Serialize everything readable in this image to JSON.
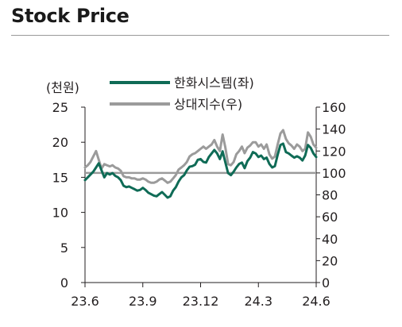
{
  "title": "Stock Price",
  "chart_data": {
    "type": "line",
    "y_left_label": "(천원)",
    "y_left_ticks": [
      "25",
      "20",
      "15",
      "10",
      "5",
      "0"
    ],
    "y_left_lim": [
      0,
      25
    ],
    "y_right_ticks": [
      "160",
      "140",
      "120",
      "100",
      "80",
      "60",
      "40",
      "20",
      "0"
    ],
    "y_right_lim": [
      0,
      160
    ],
    "x_ticks": [
      "23.6",
      "23.9",
      "23.12",
      "24.3",
      "24.6"
    ],
    "x_range": [
      "2023-06",
      "2024-06"
    ],
    "reference_line": {
      "axis": "right",
      "value": 100
    },
    "series": [
      {
        "name": "한화시스템(좌)",
        "axis": "left",
        "color": "#0f6b56",
        "values": [
          14.6,
          15.0,
          15.4,
          15.8,
          16.4,
          17.0,
          16.0,
          15.0,
          15.6,
          15.4,
          15.6,
          15.2,
          15.0,
          14.6,
          13.8,
          13.6,
          13.7,
          13.5,
          13.3,
          13.1,
          13.2,
          13.5,
          13.2,
          12.8,
          12.6,
          12.4,
          12.3,
          12.6,
          12.9,
          12.5,
          12.1,
          12.3,
          13.1,
          13.6,
          14.4,
          15.0,
          15.3,
          16.0,
          16.5,
          16.6,
          16.8,
          17.5,
          17.6,
          17.2,
          17.1,
          17.9,
          18.4,
          18.9,
          18.4,
          17.6,
          18.7,
          17.1,
          15.6,
          15.3,
          15.8,
          16.4,
          16.9,
          17.1,
          16.3,
          17.3,
          17.8,
          18.6,
          18.4,
          17.9,
          18.1,
          17.6,
          17.8,
          16.9,
          16.4,
          16.6,
          18.2,
          19.6,
          19.8,
          18.6,
          18.4,
          18.1,
          17.8,
          18.0,
          17.8,
          17.4,
          18.1,
          19.6,
          19.2,
          18.4,
          17.9
        ]
      },
      {
        "name": "상대지수(우)",
        "axis": "right",
        "color": "#9b9b9b",
        "values": [
          105,
          107,
          110,
          115,
          120,
          112,
          104,
          108,
          107,
          106,
          107,
          105,
          104,
          102,
          97,
          96,
          96,
          95,
          95,
          94,
          94,
          95,
          94,
          92,
          91,
          91,
          92,
          94,
          95,
          93,
          91,
          92,
          95,
          98,
          103,
          105,
          107,
          110,
          115,
          117,
          118,
          120,
          122,
          124,
          122,
          124,
          126,
          130,
          124,
          120,
          135,
          123,
          108,
          107,
          110,
          117,
          120,
          124,
          118,
          123,
          125,
          128,
          128,
          124,
          126,
          122,
          126,
          117,
          113,
          115,
          126,
          136,
          139,
          131,
          127,
          125,
          122,
          126,
          124,
          120,
          122,
          137,
          133,
          126,
          123
        ]
      }
    ]
  }
}
